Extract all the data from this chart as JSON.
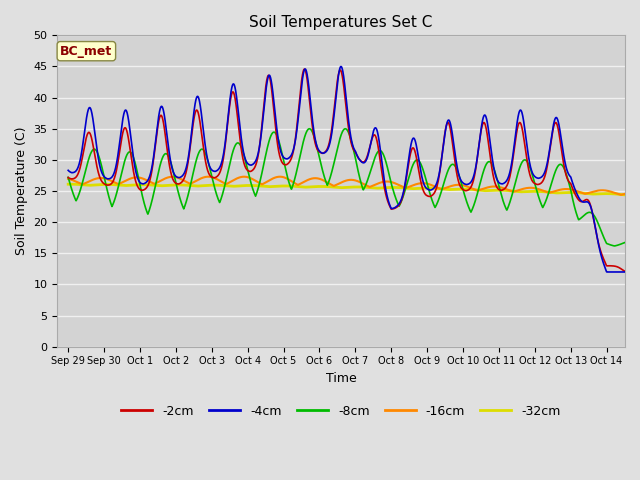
{
  "title": "Soil Temperatures Set C",
  "xlabel": "Time",
  "ylabel": "Soil Temperature (C)",
  "annotation": "BC_met",
  "ylim": [
    0,
    50
  ],
  "series": {
    "-2cm": {
      "color": "#cc0000",
      "lw": 1.2
    },
    "-4cm": {
      "color": "#0000cc",
      "lw": 1.2
    },
    "-8cm": {
      "color": "#00bb00",
      "lw": 1.2
    },
    "-16cm": {
      "color": "#ff8800",
      "lw": 1.5
    },
    "-32cm": {
      "color": "#dddd00",
      "lw": 2.0
    }
  },
  "x_tick_labels": [
    "Sep 29",
    "Sep 30",
    "Oct 1",
    "Oct 2",
    "Oct 3",
    "Oct 4",
    "Oct 5",
    "Oct 6",
    "Oct 7",
    "Oct 8",
    "Oct 9",
    "Oct 10",
    "Oct 11",
    "Oct 12",
    "Oct 13",
    "Oct 14"
  ],
  "bg_color": "#e0e0e0",
  "plot_bg_color": "#d3d3d3",
  "grid_color": "#f0f0f0",
  "yticks": [
    0,
    5,
    10,
    15,
    20,
    25,
    30,
    35,
    40,
    45,
    50
  ]
}
